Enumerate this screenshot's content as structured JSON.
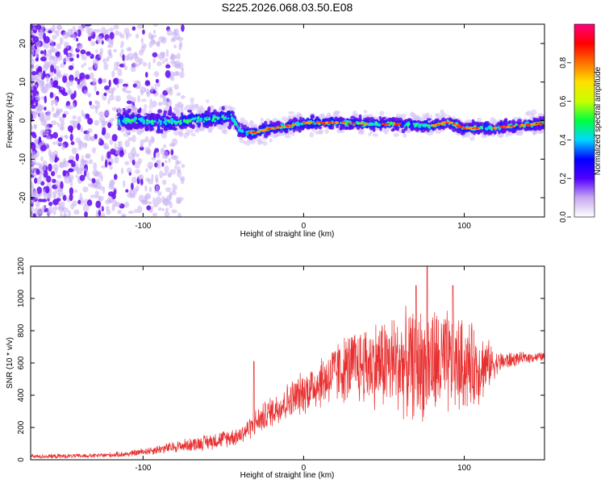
{
  "figure": {
    "title": "S225.2026.068.03.50.E08"
  },
  "chart_data": [
    {
      "type": "heatmap",
      "xlabel": "Height of straight line (km)",
      "ylabel": "Frequency (Hz)",
      "xlim": [
        -170,
        150
      ],
      "ylim": [
        -25,
        25
      ],
      "xticks": [
        -100,
        0,
        100
      ],
      "yticks": [
        -20,
        -10,
        0,
        10,
        20
      ],
      "grid": false,
      "colorbar": {
        "label": "Normalized spectral amplitude",
        "range": [
          0,
          1
        ],
        "ticks": [
          0.0,
          0.2,
          0.4,
          0.6,
          0.8
        ],
        "colors": [
          "#ffffff",
          "#c8a8f0",
          "#5000ff",
          "#0000ff",
          "#00d8ff",
          "#00ff40",
          "#c8ff00",
          "#ffe000",
          "#ff7000",
          "#ff0000",
          "#ff0080"
        ]
      },
      "ridge": {
        "x": [
          -170,
          -110,
          -80,
          -60,
          -45,
          -40,
          -35,
          -30,
          -20,
          -10,
          0,
          20,
          40,
          60,
          80,
          90,
          100,
          120,
          150
        ],
        "frequency": [
          0,
          0,
          -0.5,
          0.5,
          1,
          -2.5,
          -3.2,
          -3.0,
          -2.0,
          -1.5,
          -0.6,
          -0.6,
          -0.8,
          -0.8,
          -1.4,
          -0.3,
          -2.0,
          -1.8,
          -0.7
        ]
      }
    },
    {
      "type": "line",
      "xlabel": "Height of straight line (km)",
      "ylabel": "SNR (10 * v/v)",
      "xlim": [
        -170,
        150
      ],
      "ylim": [
        0,
        1200
      ],
      "xticks": [
        -100,
        0,
        100
      ],
      "yticks": [
        0,
        200,
        400,
        600,
        800,
        1000,
        1200
      ],
      "grid": false,
      "series": [
        {
          "color": "#e83030",
          "envelope": {
            "x": [
              -170,
              -130,
              -110,
              -100,
              -80,
              -60,
              -40,
              -32,
              -30,
              -20,
              -10,
              0,
              10,
              20,
              30,
              50,
              70,
              78,
              90,
              110,
              120,
              135,
              150
            ],
            "mean": [
              20,
              25,
              35,
              50,
              80,
              110,
              150,
              210,
              230,
              300,
              360,
              420,
              480,
              540,
              580,
              600,
              590,
              600,
              590,
              580,
              600,
              630,
              640
            ],
            "spread": [
              15,
              15,
              20,
              25,
              40,
              55,
              65,
              80,
              90,
              110,
              130,
              150,
              180,
              220,
              250,
              330,
              380,
              400,
              380,
              260,
              80,
              40,
              30
            ]
          },
          "spikes": [
            {
              "x": -31,
              "y": 610
            },
            {
              "x": 77,
              "y": 1200
            },
            {
              "x": 70,
              "y": 1080
            },
            {
              "x": 93,
              "y": 1080
            }
          ]
        }
      ]
    }
  ]
}
